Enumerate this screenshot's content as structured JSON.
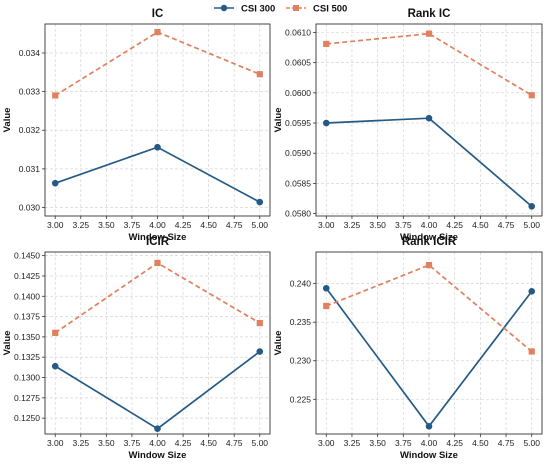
{
  "legend": {
    "position": "top-center",
    "entries": [
      {
        "name": "CSI 300",
        "color": "#245a85",
        "marker": "circle",
        "linestyle": "solid"
      },
      {
        "name": "CSI 500",
        "color": "#e0805e",
        "marker": "square",
        "linestyle": "dashed"
      }
    ]
  },
  "chart_data": [
    {
      "type": "line",
      "title": "IC",
      "xlabel": "Window Size",
      "ylabel": "Value",
      "x": [
        3,
        4,
        5
      ],
      "xticks": [
        "3.00",
        "3.25",
        "3.50",
        "3.75",
        "4.00",
        "4.25",
        "4.50",
        "4.75",
        "5.00"
      ],
      "xlim": [
        2.9,
        5.1
      ],
      "yticks": [
        "0.030",
        "0.031",
        "0.032",
        "0.033",
        "0.034"
      ],
      "ylim": [
        0.02978,
        0.03475
      ],
      "grid": true,
      "series": [
        {
          "name": "CSI 300",
          "values": [
            0.03063,
            0.03156,
            0.03014
          ]
        },
        {
          "name": "CSI 500",
          "values": [
            0.0329,
            0.03454,
            0.03345
          ]
        }
      ]
    },
    {
      "type": "line",
      "title": "Rank IC",
      "xlabel": "Window Size",
      "ylabel": "Value",
      "x": [
        3,
        4,
        5
      ],
      "xticks": [
        "3.00",
        "3.25",
        "3.50",
        "3.75",
        "4.00",
        "4.25",
        "4.50",
        "4.75",
        "5.00"
      ],
      "xlim": [
        2.9,
        5.1
      ],
      "yticks": [
        "0.0580",
        "0.0585",
        "0.0590",
        "0.0595",
        "0.0600",
        "0.0605",
        "0.0610"
      ],
      "ylim": [
        0.05796,
        0.06114
      ],
      "grid": true,
      "series": [
        {
          "name": "CSI 300",
          "values": [
            0.0595,
            0.05958,
            0.05812
          ]
        },
        {
          "name": "CSI 500",
          "values": [
            0.06081,
            0.06098,
            0.05996
          ]
        }
      ]
    },
    {
      "type": "line",
      "title": "ICIR",
      "xlabel": "Window Size",
      "ylabel": "Value",
      "x": [
        3,
        4,
        5
      ],
      "xticks": [
        "3.00",
        "3.25",
        "3.50",
        "3.75",
        "4.00",
        "4.25",
        "4.50",
        "4.75",
        "5.00"
      ],
      "xlim": [
        2.9,
        5.1
      ],
      "yticks": [
        "0.1250",
        "0.1275",
        "0.1300",
        "0.1325",
        "0.1350",
        "0.1375",
        "0.1400",
        "0.1425",
        "0.1450"
      ],
      "ylim": [
        0.12305,
        0.14545
      ],
      "grid": true,
      "series": [
        {
          "name": "CSI 300",
          "values": [
            0.1314,
            0.1237,
            0.1332
          ]
        },
        {
          "name": "CSI 500",
          "values": [
            0.1355,
            0.1441,
            0.1367
          ]
        }
      ]
    },
    {
      "type": "line",
      "title": "Rank ICIR",
      "xlabel": "Window Size",
      "ylabel": "Value",
      "x": [
        3,
        4,
        5
      ],
      "xticks": [
        "3.00",
        "3.25",
        "3.50",
        "3.75",
        "4.00",
        "4.25",
        "4.50",
        "4.75",
        "5.00"
      ],
      "xlim": [
        2.9,
        5.1
      ],
      "yticks": [
        "0.225",
        "0.230",
        "0.235",
        "0.240"
      ],
      "ylim": [
        0.2205,
        0.2441
      ],
      "grid": true,
      "series": [
        {
          "name": "CSI 300",
          "values": [
            0.2394,
            0.2215,
            0.239
          ]
        },
        {
          "name": "CSI 500",
          "values": [
            0.2371,
            0.2424,
            0.2312
          ]
        }
      ]
    }
  ]
}
